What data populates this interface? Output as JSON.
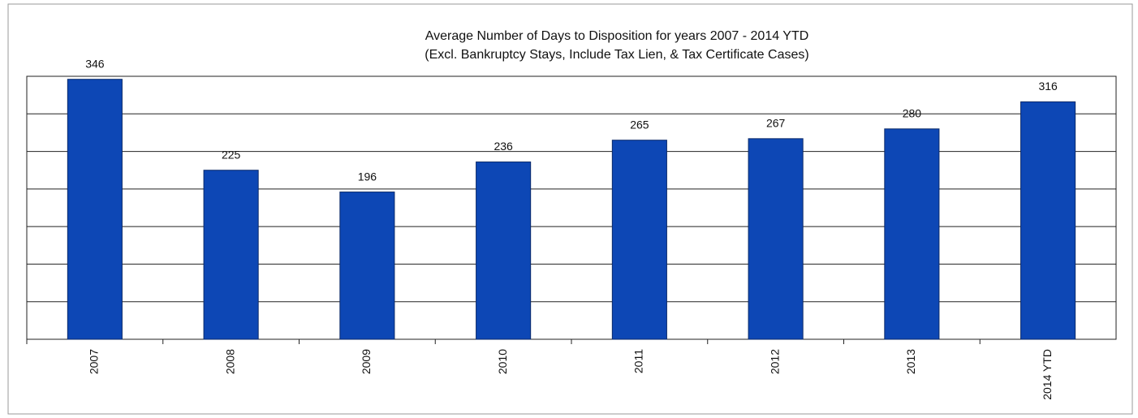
{
  "chart_data": {
    "type": "bar",
    "title": "Average Number of Days to Disposition  for years 2007 - 2014 YTD",
    "subtitle": "(Excl. Bankruptcy Stays, Include Tax Lien, & Tax Certificate Cases)",
    "categories": [
      "2007",
      "2008",
      "2009",
      "2010",
      "2011",
      "2012",
      "2013",
      "2014 YTD"
    ],
    "values": [
      346,
      225,
      196,
      236,
      265,
      267,
      280,
      316
    ],
    "color": "#0d47b5",
    "ylim": [
      0,
      350
    ],
    "yticks": [
      0,
      50,
      100,
      150,
      200,
      250,
      300,
      350
    ],
    "grid": true
  }
}
